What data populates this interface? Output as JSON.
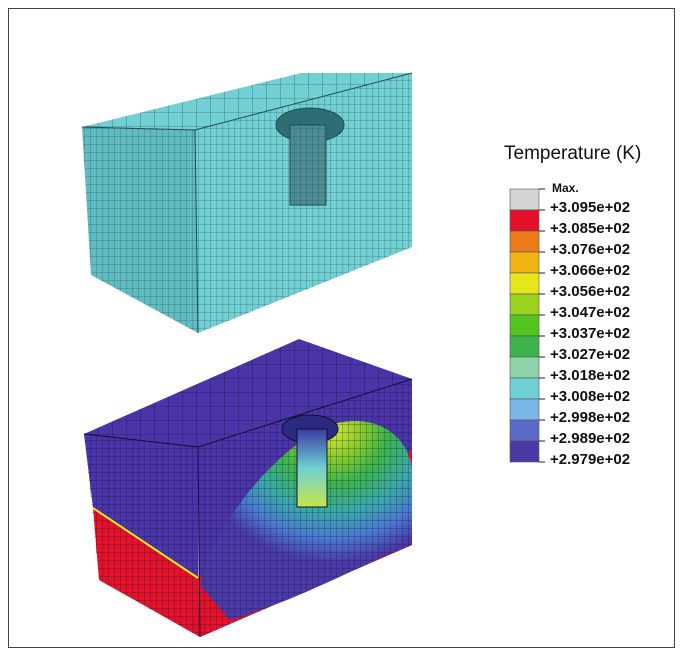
{
  "legend": {
    "title": "Temperature (K)",
    "max_label": "Max.",
    "levels": [
      {
        "label": "+3.095e+02",
        "color": "#d4d4d4"
      },
      {
        "label": "+3.085e+02",
        "color": "#e3122a"
      },
      {
        "label": "+3.076e+02",
        "color": "#ec7a1a"
      },
      {
        "label": "+3.066e+02",
        "color": "#f2b412"
      },
      {
        "label": "+3.056e+02",
        "color": "#e6e61a"
      },
      {
        "label": "+3.047e+02",
        "color": "#9ad21e"
      },
      {
        "label": "+3.037e+02",
        "color": "#52c41e"
      },
      {
        "label": "+3.027e+02",
        "color": "#3cb44b"
      },
      {
        "label": "+3.018e+02",
        "color": "#8ed4a8"
      },
      {
        "label": "+3.008e+02",
        "color": "#6fd0d4"
      },
      {
        "label": "+2.998e+02",
        "color": "#7ab6e8"
      },
      {
        "label": "+2.989e+02",
        "color": "#5a6ac8"
      },
      {
        "label": "+2.979e+02",
        "color": "#4a3aa6"
      }
    ]
  },
  "colors": {
    "mesh_block": "#72cfd3",
    "mesh_block_side": "#61bcc2",
    "mesh_line": "#1f4a50",
    "cold": "#4a34a8",
    "hot": "#e3122a"
  }
}
